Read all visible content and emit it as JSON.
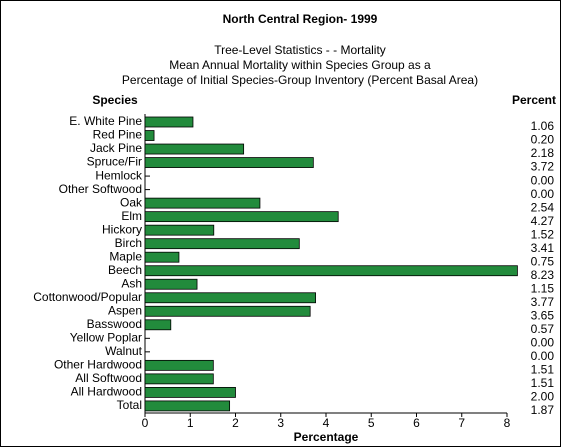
{
  "chart_data": {
    "type": "bar",
    "orientation": "horizontal",
    "title": "North Central Region- 1999",
    "subtitle": [
      "Tree-Level Statistics - - Mortality",
      "Mean Annual Mortality within Species Group as a",
      "Percentage of Initial Species-Group Inventory (Percent Basal Area)"
    ],
    "y_label": "Species",
    "value_column_label": "Percent",
    "x_label": "Percentage",
    "categories": [
      "E. White Pine",
      "Red Pine",
      "Jack Pine",
      "Spruce/Fir",
      "Hemlock",
      "Other Softwood",
      "Oak",
      "Elm",
      "Hickory",
      "Birch",
      "Maple",
      "Beech",
      "Ash",
      "Cottonwood/Popular",
      "Aspen",
      "Basswood",
      "Yellow Poplar",
      "Walnut",
      "Other Hardwood",
      "All Softwood",
      "All Hardwood",
      "Total"
    ],
    "values": [
      1.06,
      0.2,
      2.18,
      3.72,
      0,
      0,
      2.54,
      4.27,
      1.52,
      3.41,
      0.75,
      8.23,
      1.15,
      3.77,
      3.65,
      0.57,
      0,
      0,
      1.51,
      1.51,
      2,
      1.87
    ],
    "value_labels": [
      "1.06",
      "0.20",
      "2.18",
      "3.72",
      "0.00",
      "0.00",
      "2.54",
      "4.27",
      "1.52",
      "3.41",
      "0.75",
      "8.23",
      "1.15",
      "3.77",
      "3.65",
      "0.57",
      "0.00",
      "0.00",
      "1.51",
      "1.51",
      "2.00",
      "1.87"
    ],
    "color": "#228b3c",
    "xlim": [
      0,
      8
    ],
    "xticks": [
      0,
      1,
      2,
      3,
      4,
      5,
      6,
      7,
      8
    ]
  }
}
